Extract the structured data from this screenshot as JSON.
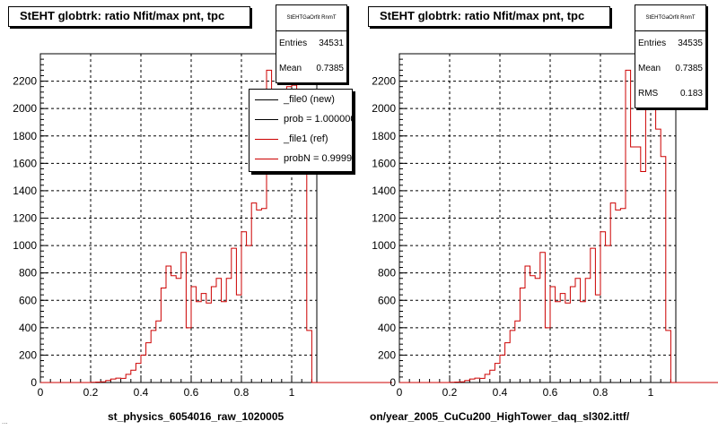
{
  "chart_data": [
    {
      "type": "histogram",
      "title": "StEHT globtrk: ratio Nfit/max pnt, tpc",
      "xlabel": "st_physics_6054016_raw_1020005",
      "xlim": [
        0,
        1.1
      ],
      "ylim": [
        0,
        2400
      ],
      "xticks": [
        "0",
        "0.2",
        "0.4",
        "0.6",
        "0.8",
        "1"
      ],
      "yticks": [
        "0",
        "200",
        "400",
        "600",
        "800",
        "1000",
        "1200",
        "1400",
        "1600",
        "1800",
        "2000",
        "2200"
      ],
      "grid": true,
      "stats": {
        "name": "StEHTGaOrfit RnmT",
        "entries_label": "Entries",
        "entries": "34531",
        "mean_label": "Mean",
        "mean": "0.7385"
      },
      "legend": {
        "placement": "top-right",
        "entries": [
          {
            "label": "_file0 (new)",
            "color": "#000000"
          },
          {
            "label": "prob = 1.000000",
            "color": "#000000"
          },
          {
            "label": "_file1 (ref)",
            "color": "#cc0000"
          },
          {
            "label": "probN = 0.99992",
            "color": "#cc0000"
          }
        ]
      },
      "series": [
        {
          "color": "#cc0000",
          "bin_width": 0.02,
          "x_start": 0.0,
          "values": [
            0,
            0,
            0,
            0,
            0,
            0,
            0,
            0,
            0,
            0,
            2,
            3,
            5,
            15,
            25,
            32,
            30,
            60,
            90,
            140,
            200,
            290,
            380,
            450,
            690,
            850,
            780,
            760,
            950,
            400,
            700,
            590,
            650,
            580,
            700,
            760,
            590,
            760,
            980,
            640,
            1100,
            1000,
            1310,
            1260,
            1270,
            2280,
            1720,
            1720,
            1540,
            2160,
            2170,
            1850,
            1650,
            380,
            0,
            0,
            0,
            0,
            0,
            0,
            0,
            0,
            0,
            0,
            0,
            0,
            0,
            0,
            0,
            0
          ]
        }
      ]
    },
    {
      "type": "histogram",
      "title": "StEHT globtrk: ratio Nfit/max pnt, tpc",
      "xlabel": "on/year_2005_CuCu200_HighTower_daq_sl302.ittf/",
      "xlim": [
        0,
        1.1
      ],
      "ylim": [
        0,
        2400
      ],
      "xticks": [
        "0",
        "0.2",
        "0.4",
        "0.6",
        "0.8",
        "1"
      ],
      "yticks": [
        "0",
        "200",
        "400",
        "600",
        "800",
        "1000",
        "1200",
        "1400",
        "1600",
        "1800",
        "2000",
        "2200"
      ],
      "grid": true,
      "stats": {
        "name": "StEHTGaOrfit RnmT",
        "entries_label": "Entries",
        "entries": "34535",
        "mean_label": "Mean",
        "mean": "0.7385",
        "rms_label": "RMS",
        "rms": "0.183"
      },
      "series": [
        {
          "color": "#cc0000",
          "bin_width": 0.02,
          "x_start": 0.0,
          "values": [
            0,
            0,
            0,
            0,
            0,
            0,
            0,
            0,
            0,
            0,
            2,
            3,
            5,
            15,
            25,
            32,
            30,
            60,
            90,
            140,
            200,
            290,
            380,
            450,
            690,
            850,
            780,
            760,
            950,
            400,
            700,
            590,
            650,
            580,
            700,
            760,
            590,
            760,
            980,
            640,
            1100,
            1000,
            1310,
            1260,
            1270,
            2280,
            1720,
            1720,
            1540,
            2160,
            2170,
            1850,
            1650,
            380,
            0,
            0,
            0,
            0,
            0,
            0,
            0,
            0,
            0,
            0,
            0,
            0,
            0,
            0,
            0,
            0
          ]
        }
      ]
    }
  ],
  "footer_text": "..."
}
